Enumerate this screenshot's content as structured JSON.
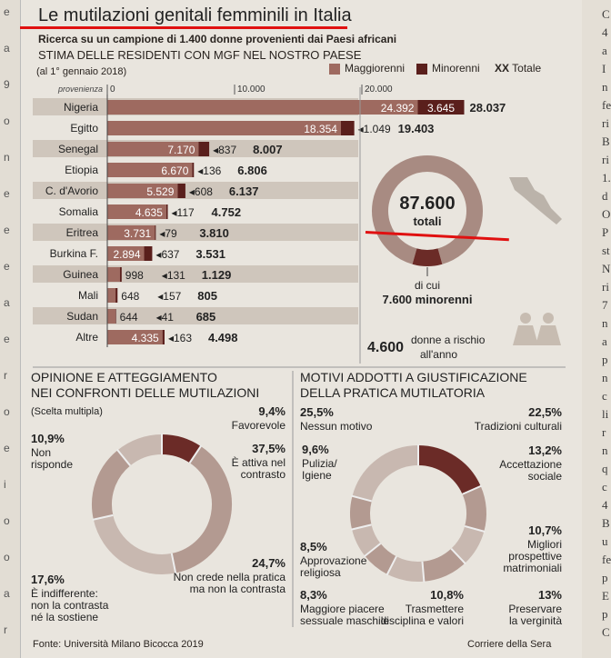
{
  "page": {
    "title": "Le mutilazioni genitali femminili in Italia",
    "subtitle": "Ricerca su un campione di 1.400 donne provenienti dai Paesi africani",
    "heading": "STIMA DELLE RESIDENTI CON MGF NEL NOSTRO PAESE",
    "date_note": "(al 1° gennaio 2018)",
    "source": "Fonte: Università Milano Bicocca 2019",
    "credit": "Corriere della Sera"
  },
  "legend": {
    "maggiorenni": "Maggiorenni",
    "minorenni": "Minorenni",
    "totale_mark": "XX",
    "totale": "Totale"
  },
  "colors": {
    "maggiorenni": "#9e6a60",
    "minorenni": "#5a1f1c",
    "ring": "#a88b82",
    "ring_dark": "#6b2b27",
    "accent": "#e01010"
  },
  "chart_data": [
    {
      "type": "bar",
      "title": "STIMA DELLE RESIDENTI CON MGF NEL NOSTRO PAESE",
      "xlabel": "provenienza",
      "xlim": [
        0,
        28000
      ],
      "ticks": [
        "0",
        "10.000",
        "20.000"
      ],
      "categories": [
        "Nigeria",
        "Egitto",
        "Senegal",
        "Etiopia",
        "C. d'Avorio",
        "Somalia",
        "Eritrea",
        "Burkina F.",
        "Guinea",
        "Mali",
        "Sudan",
        "Altre"
      ],
      "series": [
        {
          "name": "Maggiorenni",
          "values": [
            24392,
            18354,
            7170,
            6670,
            5529,
            4635,
            3731,
            2894,
            998,
            648,
            644,
            4335
          ]
        },
        {
          "name": "Minorenni",
          "values": [
            3645,
            1049,
            837,
            136,
            608,
            117,
            79,
            637,
            131,
            157,
            41,
            163
          ]
        }
      ],
      "labels": {
        "maggiorenni": [
          "24.392",
          "18.354",
          "7.170",
          "6.670",
          "5.529",
          "4.635",
          "3.731",
          "2.894",
          "998",
          "648",
          "644",
          "4.335"
        ],
        "minorenni": [
          "3.645",
          "1.049",
          "837",
          "136",
          "608",
          "117",
          "79",
          "637",
          "131",
          "157",
          "41",
          "163"
        ],
        "totale": [
          "28.037",
          "19.403",
          "8.007",
          "6.806",
          "6.137",
          "4.752",
          "3.810",
          "3.531",
          "1.129",
          "805",
          "685",
          "4.498"
        ]
      }
    },
    {
      "type": "pie",
      "center_value": "87.600",
      "center_label": "totali",
      "categories": [
        "Maggiorenni",
        "Minorenni"
      ],
      "values": [
        80000,
        7600
      ],
      "note_a": "di cui",
      "note_b": "7.600 minorenni",
      "extra_value": "4.600",
      "extra_label_1": "donne a rischio",
      "extra_label_2": "all'anno"
    },
    {
      "type": "pie",
      "title_1": "OPINIONE E ATTEGGIAMENTO",
      "title_2": "NEI CONFRONTI DELLE MUTILAZIONI",
      "note": "(Scelta multipla)",
      "categories": [
        "Favorevole",
        "È attiva nel contrasto",
        "Non crede nella pratica ma non la contrasta",
        "È indifferente: non la contrasta né la sostiene",
        "Non risponde"
      ],
      "values": [
        9.4,
        37.5,
        24.7,
        17.6,
        10.9
      ],
      "pcts": [
        "9,4%",
        "37,5%",
        "24,7%",
        "17,6%",
        "10,9%"
      ],
      "label_lines": [
        [
          "Favorevole"
        ],
        [
          "È attiva nel",
          "contrasto"
        ],
        [
          "Non crede nella pratica",
          "ma non la contrasta"
        ],
        [
          "È indifferente:",
          "non la contrasta",
          "né la sostiene"
        ],
        [
          "Non",
          "risponde"
        ]
      ]
    },
    {
      "type": "pie",
      "title_1": "MOTIVI ADDOTTI A GIUSTIFICAZIONE",
      "title_2": "DELLA PRATICA MUTILATORIA",
      "categories": [
        "Tradizioni culturali",
        "Accettazione sociale",
        "Migliori prospettive matrimoniali",
        "Preservare la verginità",
        "Trasmettere disciplina e valori",
        "Maggiore piacere sessuale maschile",
        "Approvazione religiosa",
        "Pulizia/Igiene",
        "Nessun motivo"
      ],
      "values": [
        22.5,
        13.2,
        10.7,
        13,
        10.8,
        8.3,
        8.5,
        9.6,
        25.5
      ],
      "pcts": [
        "22,5%",
        "13,2%",
        "10,7%",
        "13%",
        "10,8%",
        "8,3%",
        "8,5%",
        "9,6%",
        "25,5%"
      ],
      "label_lines": [
        [
          "Tradizioni culturali"
        ],
        [
          "Accettazione",
          "sociale"
        ],
        [
          "Migliori",
          "prospettive",
          "matrimoniali"
        ],
        [
          "Preservare",
          "la verginità"
        ],
        [
          "Trasmettere",
          "disciplina e valori"
        ],
        [
          "Maggiore piacere",
          "sessuale maschile"
        ],
        [
          "Approvazione",
          "religiosa"
        ],
        [
          "Pulizia/",
          "Igiene"
        ],
        [
          "Nessun motivo"
        ]
      ]
    }
  ],
  "left_margin_text": [
    "e",
    "a",
    "9",
    "o",
    "n",
    "e",
    "e",
    "e",
    "a",
    "e",
    "r",
    "o",
    "e",
    "i",
    "o",
    "o",
    "a",
    "r"
  ],
  "right_margin_text": [
    "C",
    "4",
    "a",
    "I",
    "n",
    "fe",
    "ri",
    "B",
    "ri",
    "1.",
    "d",
    "O",
    "P",
    "st",
    "N",
    "ri",
    "7",
    "n",
    "a",
    "p",
    "n",
    "c",
    "li",
    "r",
    "n",
    "q",
    "c",
    "4",
    "B",
    "u",
    "fe",
    "p",
    "E",
    "p",
    "C"
  ]
}
